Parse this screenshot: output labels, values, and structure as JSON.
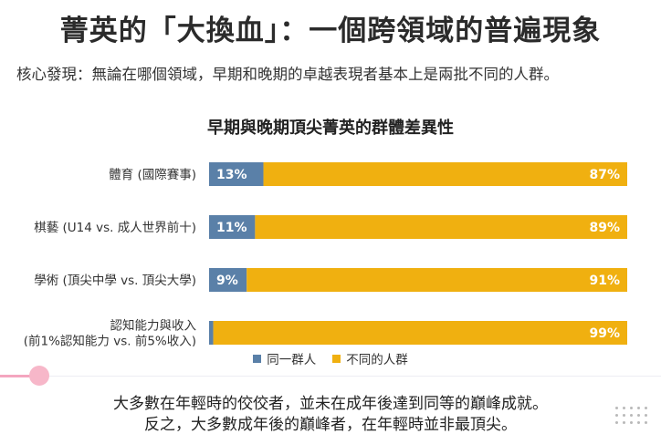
{
  "header": {
    "title": "菁英的「大換血」：一個跨領域的普遍現象",
    "subtitle": "核心發現：無論在哪個領域，早期和晚期的卓越表現者基本上是兩批不同的人群。"
  },
  "chart_data": {
    "type": "bar",
    "orientation": "horizontal",
    "stacked": true,
    "title": "早期與晚期頂尖菁英的群體差異性",
    "categories": [
      [
        "體育 (國際賽事)"
      ],
      [
        "棋藝 (U14 vs. 成人世界前十)"
      ],
      [
        "學術 (頂尖中學 vs. 頂尖大學)"
      ],
      [
        "認知能力與收入",
        "(前1%認知能力 vs. 前5%收入)"
      ]
    ],
    "series": [
      {
        "name": "同一群人",
        "values": [
          13,
          11,
          9,
          1
        ],
        "labels": [
          "13%",
          "11%",
          "9%",
          "1%"
        ],
        "color": "#5a80a8"
      },
      {
        "name": "不同的人群",
        "values": [
          87,
          89,
          91,
          99
        ],
        "labels": [
          "87%",
          "89%",
          "91%",
          "99%"
        ],
        "color": "#f0b010"
      }
    ],
    "xlim": [
      0,
      100
    ],
    "legend": "bottom-center",
    "grid": false
  },
  "progress": {
    "fraction": 0.06
  },
  "footer": {
    "line1": "大多數在年輕時的佼佼者，並未在成年後達到同等的巔峰成就。",
    "line2": "反之，大多數成年後的巔峰者，在年輕時並非最頂尖。"
  }
}
